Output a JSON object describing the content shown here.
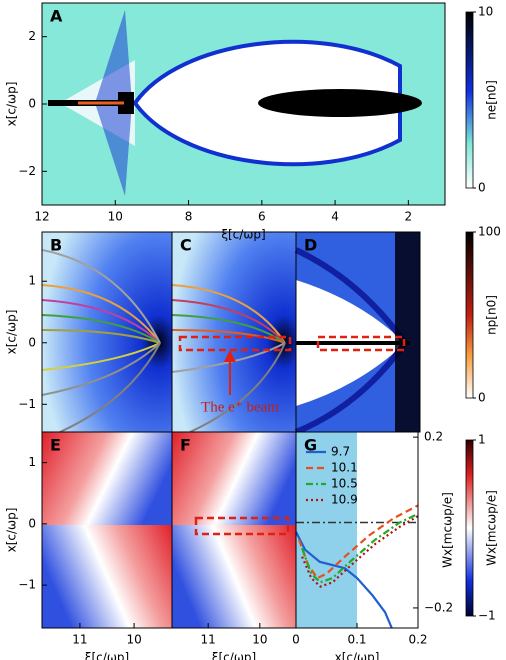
{
  "chart_data": [
    {
      "type": "heatmap",
      "title": "A",
      "xlabel": "ξ[c/ωp]",
      "ylabel": "x[c/ωp]",
      "xlim": [
        12,
        1
      ],
      "xticks": [
        12,
        10,
        8,
        6,
        4,
        2
      ],
      "ylim": [
        -3,
        3
      ],
      "yticks": [
        2,
        0,
        {
          "value": -2,
          "label": "−2"
        }
      ],
      "colorbar": {
        "label": "ne[n0]",
        "lim": [
          0,
          10
        ],
        "ticks": [
          0,
          10
        ]
      }
    },
    {
      "type": "heatmap",
      "title": "B",
      "ylabel": "x[c/ωp]",
      "ylim": [
        -1.45,
        1.8
      ],
      "yticks": [
        1,
        0,
        {
          "value": -1,
          "label": "−1"
        }
      ]
    },
    {
      "type": "heatmap",
      "title": "C",
      "annotation": "The e⁺ beam"
    },
    {
      "type": "heatmap",
      "title": "D",
      "colorbar": {
        "label": "np[n0]",
        "lim": [
          0,
          100
        ],
        "ticks": [
          0,
          100
        ]
      }
    },
    {
      "type": "heatmap",
      "title": "E",
      "xlabel": "ξ[c/ωp]",
      "ylabel": "x[c/ωp]",
      "xlim": [
        11.7,
        9.3
      ],
      "xticks": [
        11,
        10
      ],
      "ylim": [
        -1.7,
        1.5
      ],
      "yticks": [
        1,
        0,
        {
          "value": -1,
          "label": "−1"
        }
      ]
    },
    {
      "type": "heatmap",
      "title": "F",
      "xlabel": "ξ[c/ωp]",
      "xlim": [
        11.7,
        9.3
      ],
      "xticks": [
        11,
        10
      ]
    },
    {
      "type": "line",
      "title": "G",
      "xlabel": "x[c/ωp]",
      "ylabel": "Wx[mcωp/e]",
      "yaxis": "right",
      "xlim": [
        0,
        0.2
      ],
      "xticks": [
        0,
        0.1,
        0.2
      ],
      "ylim": [
        -0.247,
        0.212
      ],
      "yticks": [
        0.2,
        {
          "value": -0.2,
          "label": "−0.2"
        }
      ],
      "highlight_span": [
        0,
        0.1
      ],
      "hline": 0,
      "series": [
        {
          "name": "9.7",
          "color": "#1f5fd0",
          "linestyle": "solid",
          "x": [
            0,
            0.015,
            0.039,
            0.08,
            0.1,
            0.125,
            0.146,
            0.157
          ],
          "values": [
            -0.022,
            -0.064,
            -0.092,
            -0.107,
            -0.13,
            -0.17,
            -0.21,
            -0.247
          ]
        },
        {
          "name": "10.1",
          "color": "#e8501e",
          "linestyle": "dashed",
          "x": [
            0.005,
            0.02,
            0.035,
            0.05,
            0.08,
            0.12,
            0.16,
            0.2
          ],
          "values": [
            -0.04,
            -0.1,
            -0.13,
            -0.12,
            -0.08,
            -0.03,
            0.01,
            0.04
          ]
        },
        {
          "name": "10.5",
          "color": "#22aa22",
          "linestyle": "dashdot",
          "x": [
            0.01,
            0.025,
            0.04,
            0.06,
            0.09,
            0.13,
            0.17,
            0.2
          ],
          "values": [
            -0.06,
            -0.12,
            -0.14,
            -0.13,
            -0.09,
            -0.04,
            0,
            0.02
          ]
        },
        {
          "name": "10.9",
          "color": "#b01010",
          "linestyle": "dotted",
          "x": [
            0.01,
            0.025,
            0.04,
            0.06,
            0.09,
            0.13,
            0.17,
            0.2
          ],
          "values": [
            -0.08,
            -0.13,
            -0.15,
            -0.14,
            -0.1,
            -0.05,
            -0.01,
            0.015
          ]
        }
      ],
      "colorbar": {
        "label": "Wx[mcωp/e]",
        "lim": [
          -1,
          1
        ],
        "ticks": [
          {
            "value": -1,
            "label": "−1"
          },
          1
        ]
      }
    }
  ]
}
